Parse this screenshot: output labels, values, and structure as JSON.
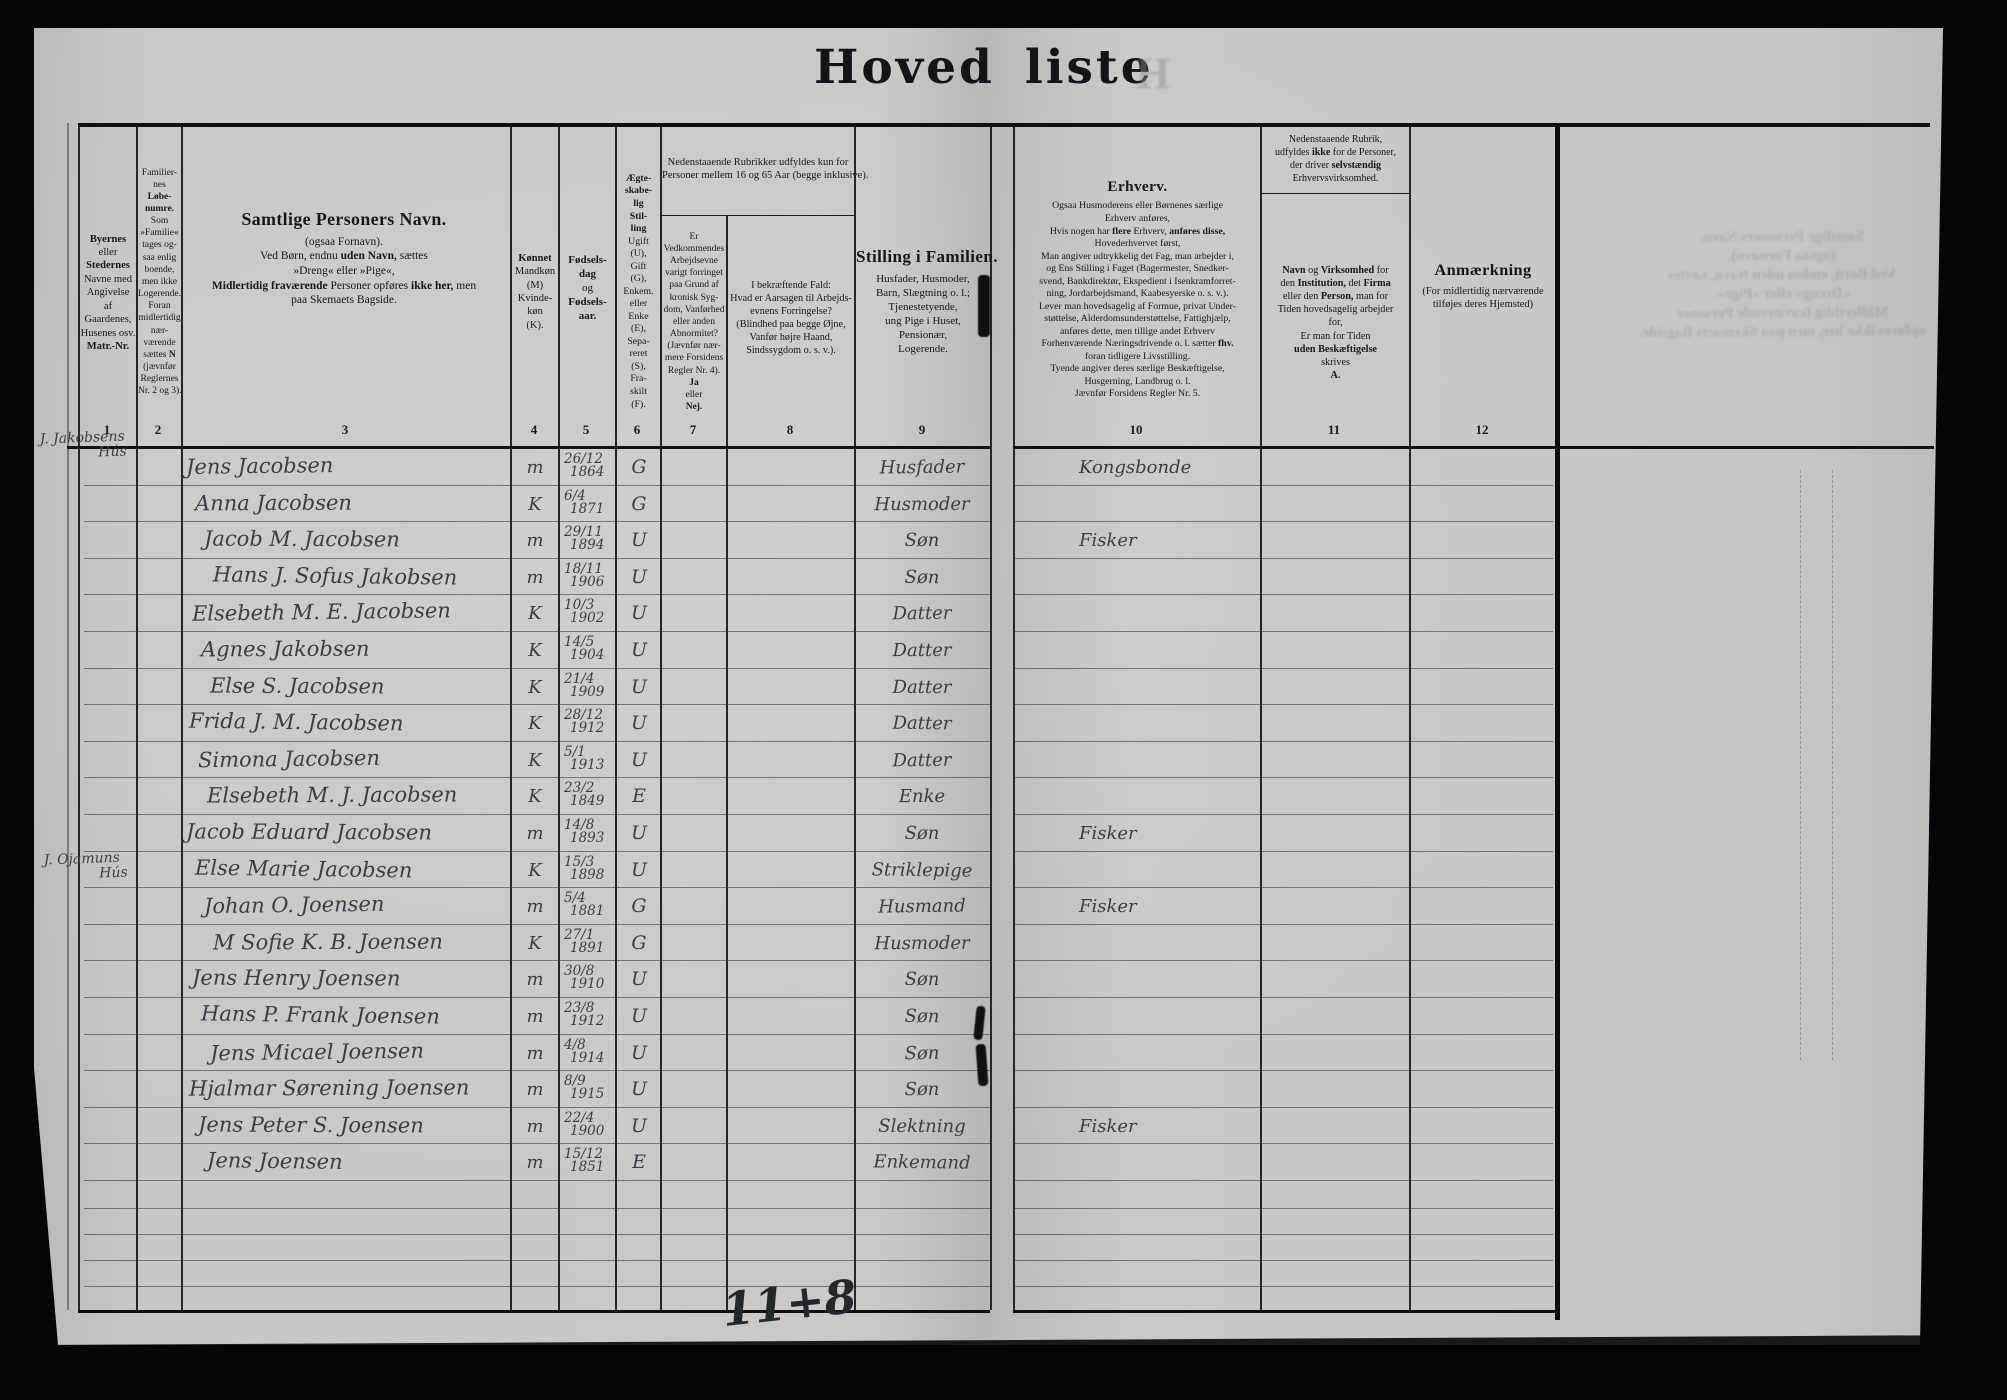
{
  "title": {
    "word1": "Hoved",
    "word2": "liste",
    "ghost_letter": "H"
  },
  "colors": {
    "paper": "#c7c6c2",
    "ink_print": "#17171b",
    "ink_hand": "#3a3e45",
    "surround": "#050505"
  },
  "column_numbers": [
    "1",
    "2",
    "3",
    "4",
    "5",
    "6",
    "7",
    "8",
    "9",
    "10",
    "11",
    "12"
  ],
  "headers": {
    "h1": [
      {
        "t": "Byernes",
        "b": 1
      },
      "eller",
      {
        "t": "Stedernes",
        "b": 1
      },
      "Navne med",
      "Angivelse",
      "af",
      "Gaardenes,",
      "Husenes osv.",
      {
        "t": "Matr.-Nr.",
        "b": 1
      }
    ],
    "h2": [
      "Familier-",
      "nes",
      {
        "t": "Løbe-",
        "b": 1
      },
      {
        "t": "numre.",
        "b": 1
      },
      "Som",
      "»Familie«",
      "tages og-",
      "saa enlig",
      "boende,",
      "men ikke",
      "Logerende.",
      "Foran",
      "midlertidig",
      "nær-",
      "værende",
      {
        "segs": [
          {
            "t": "sættes "
          },
          {
            "t": "N",
            "b": 1
          }
        ]
      },
      "(jævnfør",
      "Reglernes",
      "Nr. 2 og 3)."
    ],
    "h3": [
      {
        "t": "Samtlige Personers Navn.",
        "b": 1,
        "cls": "lg"
      },
      "(ogsaa Fornavn).",
      {
        "segs": [
          {
            "t": "Ved Børn, endnu "
          },
          {
            "t": "uden Navn,",
            "b": 1
          },
          {
            "t": " sættes"
          }
        ]
      },
      "»Dreng« eller »Pige«,",
      {
        "segs": [
          {
            "t": "Midlertidig fraværende",
            "b": 1
          },
          {
            "t": " Personer opføres "
          },
          {
            "t": "ikke her,",
            "b": 1
          },
          {
            "t": " men"
          }
        ]
      },
      "paa Skemaets Bagside."
    ],
    "h4": [
      {
        "t": "Kønnet",
        "b": 1
      },
      "Mandkøn",
      "(M)",
      "Kvinde-",
      "køn",
      "(K)."
    ],
    "h5": [
      {
        "t": "Fødsels-",
        "b": 1
      },
      {
        "t": "dag",
        "b": 1
      },
      "og",
      {
        "t": "Fødsels-",
        "b": 1
      },
      {
        "t": "aar.",
        "b": 1
      }
    ],
    "h6": [
      {
        "t": "Ægte-",
        "b": 1
      },
      {
        "t": "skabe-",
        "b": 1
      },
      {
        "t": "lig",
        "b": 1
      },
      {
        "t": "Stil-",
        "b": 1
      },
      {
        "t": "ling",
        "b": 1
      },
      "Ugift",
      "(U),",
      "Gift",
      "(G),",
      "Enkem.",
      "eller",
      "Enke",
      "(E),",
      "Sepa-",
      "reret",
      "(S),",
      "Fra-",
      "skilt",
      "(F)."
    ],
    "h78": [
      "Nedenstaaende Rubrikker udfyldes kun for",
      "Personer mellem 16 og 65 Aar (begge inklusive)."
    ],
    "h7": [
      "Er",
      "Vedkommendes",
      "Arbejdsevne",
      "varigt forringet",
      "paa Grund af",
      "kronisk Syg-",
      "dom, Vanførhed",
      "eller anden",
      "Abnormitet?",
      "(Jævnfør nær-",
      "mere Forsidens",
      "Regler Nr. 4).",
      {
        "t": "Ja",
        "b": 1
      },
      "eller",
      {
        "t": "Nej.",
        "b": 1
      }
    ],
    "h8": [
      "I bekræftende Fald:",
      "Hvad er Aarsagen til Arbejds-",
      "evnens Forringelse?",
      "(Blindhed paa begge Øjne,",
      "Vanfør højre Haand,",
      "Sindssygdom o. s. v.)."
    ],
    "h9": [
      {
        "t": "Stilling i Familien.",
        "b": 1,
        "cls": "lg"
      },
      "Husfader, Husmoder,",
      "Barn, Slægtning o. l.;",
      "Tjenestetyende,",
      "ung Pige i Huset,",
      "Pensionær,",
      "Logerende."
    ],
    "h10": [
      {
        "t": "Erhverv.",
        "b": 1,
        "cls": "lg"
      },
      "Ogsaa Husmoderens eller Børnenes særlige",
      "Erhverv anføres,",
      {
        "segs": [
          {
            "t": "Hvis nogen har "
          },
          {
            "t": "flere",
            "b": 1
          },
          {
            "t": " Erhverv, "
          },
          {
            "t": "anføres disse,",
            "b": 1
          }
        ]
      },
      "Hovederhvervet først,",
      "Man angiver udtrykkelig det Fag, man arbejder i,",
      "og Ens Stilling i Faget (Bagermester, Snedker-",
      "svend, Bankdirektør, Ekspedient i Isenkramforret-",
      "ning, Jordarbejdsmand, Kaabesyerske o. s. v.).",
      "Lever man hovedsagelig af Formue, privat Under-",
      "støttelse, Alderdomsunderstøttelse, Fattighjælp,",
      "anføres dette, men tillige andet Erhverv",
      {
        "segs": [
          {
            "t": "Forhenværende Næringsdrivende o. l. sætter "
          },
          {
            "t": "fhv.",
            "b": 1
          }
        ]
      },
      "foran tidligere Livsstilling.",
      "Tyende angiver deres særlige Beskæftigelse,",
      "Husgerning, Landbrug o. l.",
      "Jævnfør Forsidens Regler Nr. 5."
    ],
    "h11t": [
      "Nedenstaaende Rubrik,",
      {
        "segs": [
          {
            "t": "udfyldes "
          },
          {
            "t": "ikke",
            "b": 1
          },
          {
            "t": " for de Personer,"
          }
        ]
      },
      {
        "segs": [
          {
            "t": "der driver "
          },
          {
            "t": "selvstændig",
            "b": 1
          }
        ]
      },
      "Erhvervsvirksomhed."
    ],
    "h11b": [
      {
        "segs": [
          {
            "t": "Navn",
            "b": 1
          },
          {
            "t": " og "
          },
          {
            "t": "Virksomhed",
            "b": 1
          },
          {
            "t": " for"
          }
        ]
      },
      {
        "segs": [
          {
            "t": "den "
          },
          {
            "t": "Institution,",
            "b": 1
          },
          {
            "t": " det "
          },
          {
            "t": "Firma",
            "b": 1
          }
        ]
      },
      {
        "segs": [
          {
            "t": "eller den "
          },
          {
            "t": "Person,",
            "b": 1
          },
          {
            "t": " man for"
          }
        ]
      },
      "Tiden hovedsagelig arbejder",
      "for,",
      "Er man for Tiden",
      {
        "t": "uden Beskæftigelse",
        "b": 1
      },
      "skrives",
      {
        "t": "A.",
        "b": 1
      }
    ],
    "h12": [
      {
        "t": "Anmærkning",
        "b": 1,
        "cls": "lg"
      },
      "(For midlertidig nærværende",
      "tilføjes deres Hjemsted)"
    ]
  },
  "margin_notes": [
    {
      "line1": "J. Jakobsens",
      "line2": "Hús",
      "at_row": 1
    },
    {
      "line1": "J. Ojamuns",
      "line2": "Hús",
      "at_row": 13
    }
  ],
  "rows": [
    {
      "name": "Jens Jacobsen",
      "sex": "m",
      "date_dm": "26/12",
      "date_y": "1864",
      "status": "G",
      "family": "Husfader",
      "occupation": "Kongsbonde"
    },
    {
      "name": "Anna Jacobsen",
      "sex": "K",
      "date_dm": "6/4",
      "date_y": "1871",
      "status": "G",
      "family": "Husmoder",
      "occupation": ""
    },
    {
      "name": "Jacob M. Jacobsen",
      "sex": "m",
      "date_dm": "29/11",
      "date_y": "1894",
      "status": "U",
      "family": "Søn",
      "occupation": "Fisker"
    },
    {
      "name": "Hans J. Sofus Jakobsen",
      "sex": "m",
      "date_dm": "18/11",
      "date_y": "1906",
      "status": "U",
      "family": "Søn",
      "occupation": ""
    },
    {
      "name": "Elsebeth M. E. Jacobsen",
      "sex": "K",
      "date_dm": "10/3",
      "date_y": "1902",
      "status": "U",
      "family": "Datter",
      "occupation": ""
    },
    {
      "name": "Agnes Jakobsen",
      "sex": "K",
      "date_dm": "14/5",
      "date_y": "1904",
      "status": "U",
      "family": "Datter",
      "occupation": ""
    },
    {
      "name": "Else S. Jacobsen",
      "sex": "K",
      "date_dm": "21/4",
      "date_y": "1909",
      "status": "U",
      "family": "Datter",
      "occupation": ""
    },
    {
      "name": "Frida J. M. Jacobsen",
      "sex": "K",
      "date_dm": "28/12",
      "date_y": "1912",
      "status": "U",
      "family": "Datter",
      "occupation": ""
    },
    {
      "name": "Simona Jacobsen",
      "sex": "K",
      "date_dm": "5/1",
      "date_y": "1913",
      "status": "U",
      "family": "Datter",
      "occupation": ""
    },
    {
      "name": "Elsebeth M. J. Jacobsen",
      "sex": "K",
      "date_dm": "23/2",
      "date_y": "1849",
      "status": "E",
      "family": "Enke",
      "occupation": ""
    },
    {
      "name": "Jacob Eduard Jacobsen",
      "sex": "m",
      "date_dm": "14/8",
      "date_y": "1893",
      "status": "U",
      "family": "Søn",
      "occupation": "Fisker"
    },
    {
      "name": "Else Marie Jacobsen",
      "sex": "K",
      "date_dm": "15/3",
      "date_y": "1898",
      "status": "U",
      "family": "Striklepige",
      "occupation": ""
    },
    {
      "name": "Johan O. Joensen",
      "sex": "m",
      "date_dm": "5/4",
      "date_y": "1881",
      "status": "G",
      "family": "Husmand",
      "occupation": "Fisker"
    },
    {
      "name": "M Sofie K. B. Joensen",
      "sex": "K",
      "date_dm": "27/1",
      "date_y": "1891",
      "status": "G",
      "family": "Husmoder",
      "occupation": ""
    },
    {
      "name": "Jens Henry Joensen",
      "sex": "m",
      "date_dm": "30/8",
      "date_y": "1910",
      "status": "U",
      "family": "Søn",
      "occupation": ""
    },
    {
      "name": "Hans P. Frank Joensen",
      "sex": "m",
      "date_dm": "23/8",
      "date_y": "1912",
      "status": "U",
      "family": "Søn",
      "occupation": ""
    },
    {
      "name": "Jens Micael Joensen",
      "sex": "m",
      "date_dm": "4/8",
      "date_y": "1914",
      "status": "U",
      "family": "Søn",
      "occupation": ""
    },
    {
      "name": "Hjalmar Sørening Joensen",
      "sex": "m",
      "date_dm": "8/9",
      "date_y": "1915",
      "status": "U",
      "family": "Søn",
      "occupation": ""
    },
    {
      "name": "Jens Peter S. Joensen",
      "sex": "m",
      "date_dm": "22/4",
      "date_y": "1900",
      "status": "U",
      "family": "Slektning",
      "occupation": "Fisker"
    },
    {
      "name": "Jens Joensen",
      "sex": "m",
      "date_dm": "15/12",
      "date_y": "1851",
      "status": "E",
      "family": "Enkemand",
      "occupation": ""
    }
  ],
  "bottom_annotation": "11+8",
  "bleed_through_lines": [
    "Samtlige Personers Navn.",
    "(ogsaa Fornavn).",
    "Ved Børn, endnu uden Navn, sættes",
    "»Dreng« eller »Pige«.",
    "Midlertidig fraværende Personer",
    "opføres ikke her, men paa Skemaets Bagside."
  ]
}
